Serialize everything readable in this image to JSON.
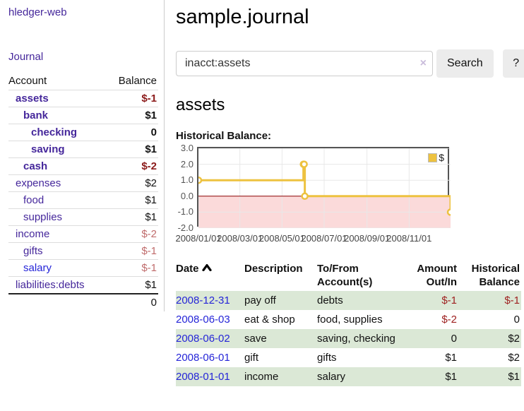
{
  "colors": {
    "purple": "#45279b",
    "blue": "#2525d8",
    "neg": "#8b1a1a",
    "neg-muted": "#c06c6c",
    "neg-table": "#9e2020",
    "row-green": "#dbe8d6",
    "chart-yellow": "#edc240",
    "region-pink": "#fbdada",
    "zero-line": "#8b0000",
    "grid": "#e8e8e8"
  },
  "app": {
    "brand": "hledger-web",
    "nav_journal": "Journal"
  },
  "sidebar": {
    "columns": {
      "account": "Account",
      "balance": "Balance"
    },
    "accounts": [
      {
        "name": "assets",
        "indent": 1,
        "balance": "$-1",
        "bold": true,
        "negative": true
      },
      {
        "name": "bank",
        "indent": 2,
        "balance": "$1",
        "bold": true,
        "negative": false
      },
      {
        "name": "checking",
        "indent": 3,
        "balance": "0",
        "bold": true,
        "negative": false
      },
      {
        "name": "saving",
        "indent": 3,
        "balance": "$1",
        "bold": true,
        "negative": false
      },
      {
        "name": "cash",
        "indent": 2,
        "balance": "$-2",
        "bold": true,
        "negative": true
      },
      {
        "name": "expenses",
        "indent": 1,
        "balance": "$2",
        "bold": false,
        "negative": false
      },
      {
        "name": "food",
        "indent": 2,
        "balance": "$1",
        "bold": false,
        "negative": false
      },
      {
        "name": "supplies",
        "indent": 2,
        "balance": "$1",
        "bold": false,
        "negative": false
      },
      {
        "name": "income",
        "indent": 1,
        "balance": "$-2",
        "bold": false,
        "negative": true
      },
      {
        "name": "gifts",
        "indent": 2,
        "balance": "$-1",
        "bold": false,
        "negative": true
      },
      {
        "name": "salary",
        "indent": 2,
        "balance": "$-1",
        "bold": false,
        "negative": true,
        "unvisited": true
      },
      {
        "name": "liabilities:debts",
        "indent": 1,
        "balance": "$1",
        "bold": false,
        "negative": false
      }
    ],
    "total": "0"
  },
  "header": {
    "title": "sample.journal"
  },
  "search": {
    "value": "inacct:assets",
    "clear_icon": "×",
    "button": "Search",
    "help": "?"
  },
  "account_page": {
    "heading": "assets",
    "chart_label": "Historical Balance:"
  },
  "chart_data": {
    "type": "line",
    "title": "Historical Balance:",
    "series": [
      {
        "name": "$",
        "step": true,
        "points": [
          [
            "2008-01-01",
            1
          ],
          [
            "2008-06-01",
            2
          ],
          [
            "2008-06-02",
            2
          ],
          [
            "2008-06-03",
            0
          ],
          [
            "2008-12-31",
            -1
          ]
        ]
      }
    ],
    "x_range": [
      "2008-01-01",
      "2008-12-31"
    ],
    "ylim": [
      -2,
      3
    ],
    "y_ticks": [
      3.0,
      2.0,
      1.0,
      0.0,
      -1.0,
      -2.0
    ],
    "x_ticks": [
      "2008/01/01",
      "2008/03/01",
      "2008/05/01",
      "2008/07/01",
      "2008/09/01",
      "2008/11/01"
    ],
    "legend": {
      "label": "$",
      "position": "top-right"
    },
    "grid": true,
    "negative_region_shaded": true
  },
  "register": {
    "columns": [
      {
        "label": "Date",
        "sortable": true,
        "sort": "ascending"
      },
      {
        "label": "Description"
      },
      {
        "label": "To/From Account(s)"
      },
      {
        "label": "Amount Out/In"
      },
      {
        "label": "Historical Balance"
      }
    ],
    "rows": [
      {
        "date": "2008-12-31",
        "description": "pay off",
        "accounts": "debts",
        "amount": "$-1",
        "balance": "$-1",
        "amount_negative": true,
        "balance_negative": true,
        "shaded": true
      },
      {
        "date": "2008-06-03",
        "description": "eat & shop",
        "accounts": "food, supplies",
        "amount": "$-2",
        "balance": "0",
        "amount_negative": true,
        "balance_negative": false,
        "shaded": false
      },
      {
        "date": "2008-06-02",
        "description": "save",
        "accounts": "saving, checking",
        "amount": "0",
        "balance": "$2",
        "amount_negative": false,
        "balance_negative": false,
        "shaded": true
      },
      {
        "date": "2008-06-01",
        "description": "gift",
        "accounts": "gifts",
        "amount": "$1",
        "balance": "$2",
        "amount_negative": false,
        "balance_negative": false,
        "shaded": false
      },
      {
        "date": "2008-01-01",
        "description": "income",
        "accounts": "salary",
        "amount": "$1",
        "balance": "$1",
        "amount_negative": false,
        "balance_negative": false,
        "shaded": true
      }
    ]
  }
}
